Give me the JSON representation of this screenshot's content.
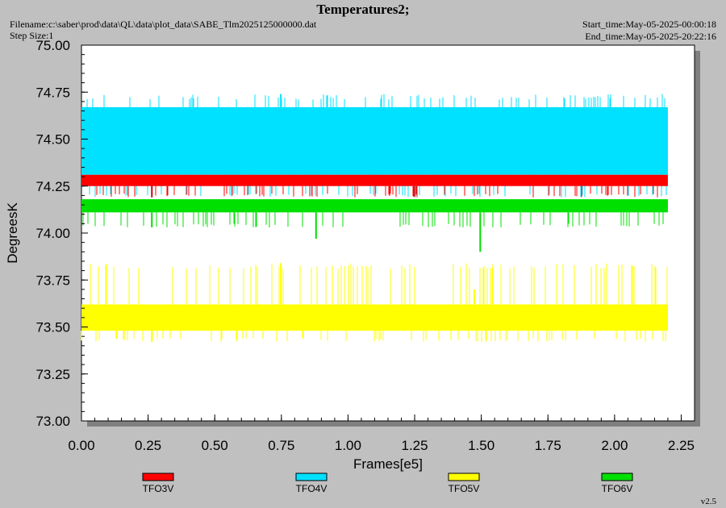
{
  "header": {
    "title": "Temperatures2;",
    "filename": "Filename:c:\\saber\\prod\\data\\QL\\data\\plot_data\\SABE_Tlm2025125000000.dat",
    "step_size": "Step Size:1",
    "start_time": "Start_time:May-05-2025-00:00:18",
    "end_time": "End_time:May-05-2025-20:22:16",
    "version": "v2.5"
  },
  "colors": {
    "background": "#c0c0c0",
    "plot_area": "#ffffff",
    "TFO3V": "#ff0000",
    "TFO4V": "#00e0ff",
    "TFO5V": "#ffff00",
    "TFO6V": "#00e000"
  },
  "chart_data": {
    "type": "line",
    "title": "Temperatures2;",
    "xlabel": "Frames[e5]",
    "ylabel": "DegreesK",
    "xlim": [
      0,
      2.3
    ],
    "ylim": [
      73.0,
      75.0
    ],
    "x_ticks": [
      "0.00",
      "0.25",
      "0.50",
      "0.75",
      "1.00",
      "1.25",
      "1.50",
      "1.75",
      "2.00",
      "2.25"
    ],
    "y_ticks": [
      "73.00",
      "73.25",
      "73.50",
      "73.75",
      "74.00",
      "74.25",
      "74.50",
      "74.75",
      "75.00"
    ],
    "grid": false,
    "legend_position": "bottom",
    "x_range": [
      0.0,
      2.2
    ],
    "series": [
      {
        "name": "TFO3V",
        "color": "#ff0000",
        "band": [
          74.25,
          74.31
        ],
        "spikes_low": [
          74.19
        ]
      },
      {
        "name": "TFO4V",
        "color": "#00e0ff",
        "band": [
          74.31,
          74.67
        ],
        "spikes_high": [
          74.74
        ],
        "spikes_low": [
          74.19
        ]
      },
      {
        "name": "TFO5V",
        "color": "#ffff00",
        "band": [
          73.48,
          73.62
        ],
        "spikes_high": [
          73.84,
          73.7
        ],
        "spikes_low": [
          73.42
        ]
      },
      {
        "name": "TFO6V",
        "color": "#00e000",
        "band": [
          74.11,
          74.18
        ],
        "spikes_low": [
          74.03,
          73.97,
          73.9
        ]
      }
    ]
  }
}
